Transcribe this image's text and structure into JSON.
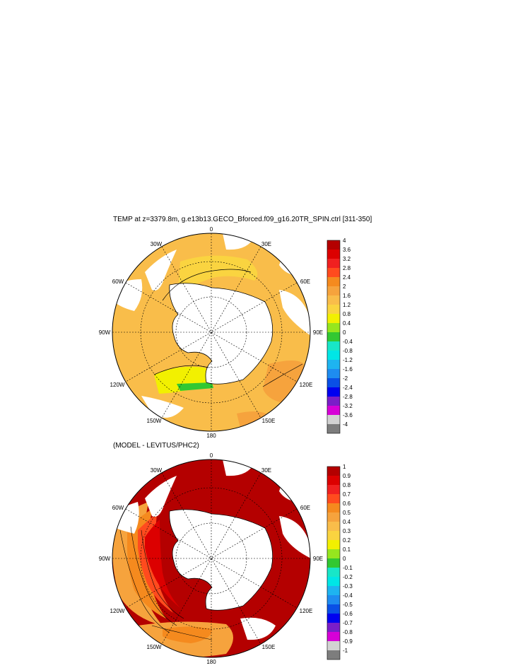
{
  "panels": [
    {
      "title": "TEMP at z=3379.8m, g.e13b13.GECO_Bforced.f09_g16.20TR_SPIN.ctrl [311-350]",
      "lon_labels": {
        "top": "0",
        "tr": "30E",
        "r2": "60E",
        "right": "90E",
        "r4": "120E",
        "r5": "150E",
        "bottom": "180",
        "l5": "150W",
        "l4": "120W",
        "left": "90W",
        "l2": "60W",
        "tl": "30W"
      },
      "colorbar": {
        "labels": [
          "4",
          "3.6",
          "3.2",
          "2.8",
          "2.4",
          "2",
          "1.6",
          "1.2",
          "0.8",
          "0.4",
          "0",
          "-0.4",
          "-0.8",
          "-1.2",
          "-1.6",
          "-2",
          "-2.4",
          "-2.8",
          "-3.2",
          "-3.6",
          "-4"
        ],
        "colors": [
          "#b40000",
          "#dc0000",
          "#f02020",
          "#ff4b1e",
          "#f58a1e",
          "#f6a33d",
          "#f9bd4a",
          "#fad440",
          "#f2f000",
          "#96e61e",
          "#32c832",
          "#18e6c8",
          "#00e6e6",
          "#1eb4f0",
          "#1e8cf0",
          "#0a50e6",
          "#0000f0",
          "#7a1ec8",
          "#d700d7",
          "#d2d2d2",
          "#7d7d7d"
        ]
      }
    },
    {
      "title": "(MODEL - LEVITUS/PHC2)",
      "lon_labels": {
        "top": "0",
        "tr": "30E",
        "r2": "60E",
        "right": "90E",
        "r4": "120E",
        "r5": "150E",
        "bottom": "180",
        "l5": "150W",
        "l4": "120W",
        "left": "90W",
        "l2": "60W",
        "tl": "30W"
      },
      "colorbar": {
        "labels": [
          "1",
          "0.9",
          "0.8",
          "0.7",
          "0.6",
          "0.5",
          "0.4",
          "0.3",
          "0.2",
          "0.1",
          "0",
          "-0.1",
          "-0.2",
          "-0.3",
          "-0.4",
          "-0.5",
          "-0.6",
          "-0.7",
          "-0.8",
          "-0.9",
          "-1"
        ],
        "colors": [
          "#b40000",
          "#dc0000",
          "#f02020",
          "#ff4b1e",
          "#f58a1e",
          "#f6a33d",
          "#f9bd4a",
          "#fad440",
          "#f2f000",
          "#96e61e",
          "#32c832",
          "#18e6c8",
          "#00e6e6",
          "#1eb4f0",
          "#1e8cf0",
          "#0a50e6",
          "#0000f0",
          "#7a1ec8",
          "#d700d7",
          "#d2d2d2",
          "#7d7d7d"
        ]
      }
    }
  ]
}
